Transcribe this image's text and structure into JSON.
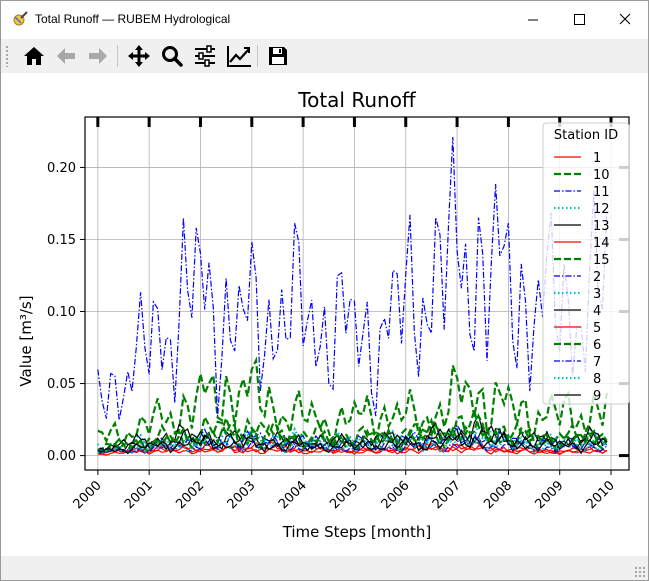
{
  "window": {
    "title": "Total Runoff — RUBEM Hydrological",
    "controls": [
      "minimize",
      "maximize",
      "close"
    ]
  },
  "toolbar": {
    "buttons": [
      {
        "name": "home-button",
        "icon": "home-icon",
        "enabled": true
      },
      {
        "name": "back-button",
        "icon": "arrow-left-icon",
        "enabled": false
      },
      {
        "name": "forward-button",
        "icon": "arrow-right-icon",
        "enabled": false
      },
      {
        "name": "pan-button",
        "icon": "move-icon",
        "enabled": true
      },
      {
        "name": "zoom-button",
        "icon": "magnifier-icon",
        "enabled": true
      },
      {
        "name": "subplots-button",
        "icon": "sliders-icon",
        "enabled": true
      },
      {
        "name": "axes-button",
        "icon": "line-chart-icon",
        "enabled": true
      },
      {
        "name": "save-button",
        "icon": "floppy-icon",
        "enabled": true
      }
    ]
  },
  "chart_data": {
    "type": "line",
    "title": "Total Runoff",
    "xlabel": "Time Steps [month]",
    "ylabel": "Value [m³/s]",
    "xlim": [
      1999.75,
      2010.35
    ],
    "ylim": [
      -0.01,
      0.235
    ],
    "x_ticks": [
      "2000",
      "2001",
      "2002",
      "2003",
      "2004",
      "2005",
      "2006",
      "2007",
      "2008",
      "2009",
      "2010"
    ],
    "y_ticks": [
      "0.00",
      "0.05",
      "0.10",
      "0.15",
      "0.20"
    ],
    "grid": true,
    "legend": {
      "title": "Station ID",
      "placement": "top-right"
    },
    "series": [
      {
        "name": "1",
        "color": "#ff0000",
        "style": "solid",
        "values": [
          0.002,
          0.004,
          0.003,
          0.005,
          0.007,
          0.004,
          0.003,
          0.006,
          0.005,
          0.003,
          0.002,
          0.004
        ]
      },
      {
        "name": "10",
        "color": "#008000",
        "style": "dashed",
        "values": [
          0.012,
          0.02,
          0.035,
          0.048,
          0.03,
          0.022,
          0.03,
          0.025,
          0.045,
          0.03,
          0.028,
          0.033
        ]
      },
      {
        "name": "11",
        "color": "#0000ff",
        "style": "dashdot",
        "values": [
          0.038,
          0.07,
          0.115,
          0.09,
          0.1,
          0.09,
          0.08,
          0.12,
          0.14,
          0.11,
          0.1,
          0.12
        ]
      },
      {
        "name": "12",
        "color": "#00bfbf",
        "style": "dotted",
        "values": [
          0.006,
          0.009,
          0.011,
          0.013,
          0.011,
          0.01,
          0.01,
          0.012,
          0.015,
          0.011,
          0.01,
          0.012
        ]
      },
      {
        "name": "13",
        "color": "#000000",
        "style": "solid",
        "values": [
          0.005,
          0.01,
          0.014,
          0.012,
          0.01,
          0.009,
          0.011,
          0.012,
          0.018,
          0.012,
          0.01,
          0.013
        ]
      },
      {
        "name": "14",
        "color": "#ff0000",
        "style": "solid",
        "values": [
          0.002,
          0.004,
          0.006,
          0.005,
          0.004,
          0.003,
          0.004,
          0.005,
          0.006,
          0.004,
          0.003,
          0.005
        ]
      },
      {
        "name": "15",
        "color": "#008000",
        "style": "dashed",
        "values": [
          0.005,
          0.01,
          0.015,
          0.02,
          0.014,
          0.012,
          0.013,
          0.016,
          0.02,
          0.014,
          0.012,
          0.016
        ]
      },
      {
        "name": "2",
        "color": "#0000ff",
        "style": "dashdot",
        "values": [
          0.003,
          0.006,
          0.01,
          0.012,
          0.01,
          0.008,
          0.009,
          0.011,
          0.013,
          0.009,
          0.008,
          0.01
        ]
      },
      {
        "name": "3",
        "color": "#00bfbf",
        "style": "dotted",
        "values": [
          0.003,
          0.007,
          0.009,
          0.011,
          0.01,
          0.008,
          0.009,
          0.01,
          0.012,
          0.009,
          0.008,
          0.01
        ]
      },
      {
        "name": "4",
        "color": "#000000",
        "style": "solid",
        "values": [
          0.004,
          0.008,
          0.012,
          0.01,
          0.009,
          0.008,
          0.01,
          0.011,
          0.015,
          0.01,
          0.009,
          0.011
        ]
      },
      {
        "name": "5",
        "color": "#ff0000",
        "style": "solid",
        "values": [
          0.001,
          0.003,
          0.004,
          0.004,
          0.003,
          0.003,
          0.003,
          0.004,
          0.005,
          0.003,
          0.003,
          0.004
        ]
      },
      {
        "name": "6",
        "color": "#008000",
        "style": "dashed",
        "values": [
          0.004,
          0.008,
          0.012,
          0.016,
          0.012,
          0.01,
          0.011,
          0.013,
          0.017,
          0.012,
          0.01,
          0.013
        ]
      },
      {
        "name": "7",
        "color": "#0000ff",
        "style": "dashdot",
        "values": [
          0.002,
          0.004,
          0.006,
          0.007,
          0.006,
          0.005,
          0.005,
          0.006,
          0.008,
          0.006,
          0.005,
          0.006
        ]
      },
      {
        "name": "8",
        "color": "#00bfbf",
        "style": "dotted",
        "values": [
          0.002,
          0.005,
          0.007,
          0.008,
          0.007,
          0.006,
          0.006,
          0.007,
          0.009,
          0.007,
          0.006,
          0.007
        ]
      },
      {
        "name": "9",
        "color": "#000000",
        "style": "solid",
        "values": [
          0.003,
          0.006,
          0.009,
          0.008,
          0.007,
          0.006,
          0.007,
          0.008,
          0.011,
          0.008,
          0.007,
          0.009
        ]
      }
    ]
  }
}
